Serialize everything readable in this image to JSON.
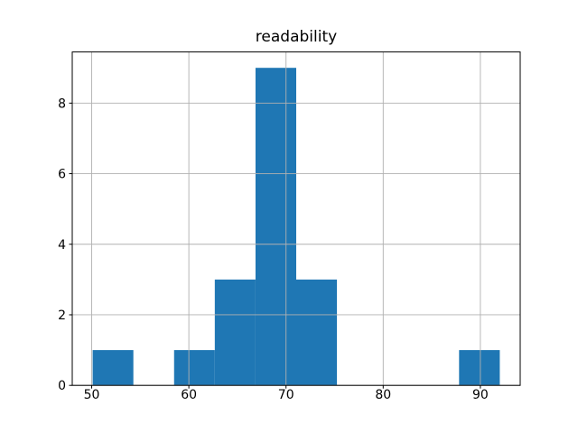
{
  "chart_data": {
    "type": "bar",
    "subtype": "histogram",
    "title": "readability",
    "xlabel": "",
    "ylabel": "",
    "bin_edges": [
      50.1,
      54.29,
      58.48,
      62.67,
      66.86,
      71.05,
      75.24,
      79.43,
      83.62,
      87.81,
      92.0
    ],
    "counts": [
      1,
      0,
      1,
      3,
      9,
      3,
      0,
      0,
      0,
      1
    ],
    "xticks": [
      50,
      60,
      70,
      80,
      90
    ],
    "yticks": [
      0,
      2,
      4,
      6,
      8
    ],
    "xlim": [
      48.0,
      94.1
    ],
    "ylim": [
      0,
      9.45
    ],
    "grid": true,
    "grid_above_bars": true,
    "colors": {
      "bar": "#1f77b4",
      "grid": "#b0b0b0",
      "axes": "#000000",
      "text": "#000000",
      "background": "#ffffff"
    }
  }
}
